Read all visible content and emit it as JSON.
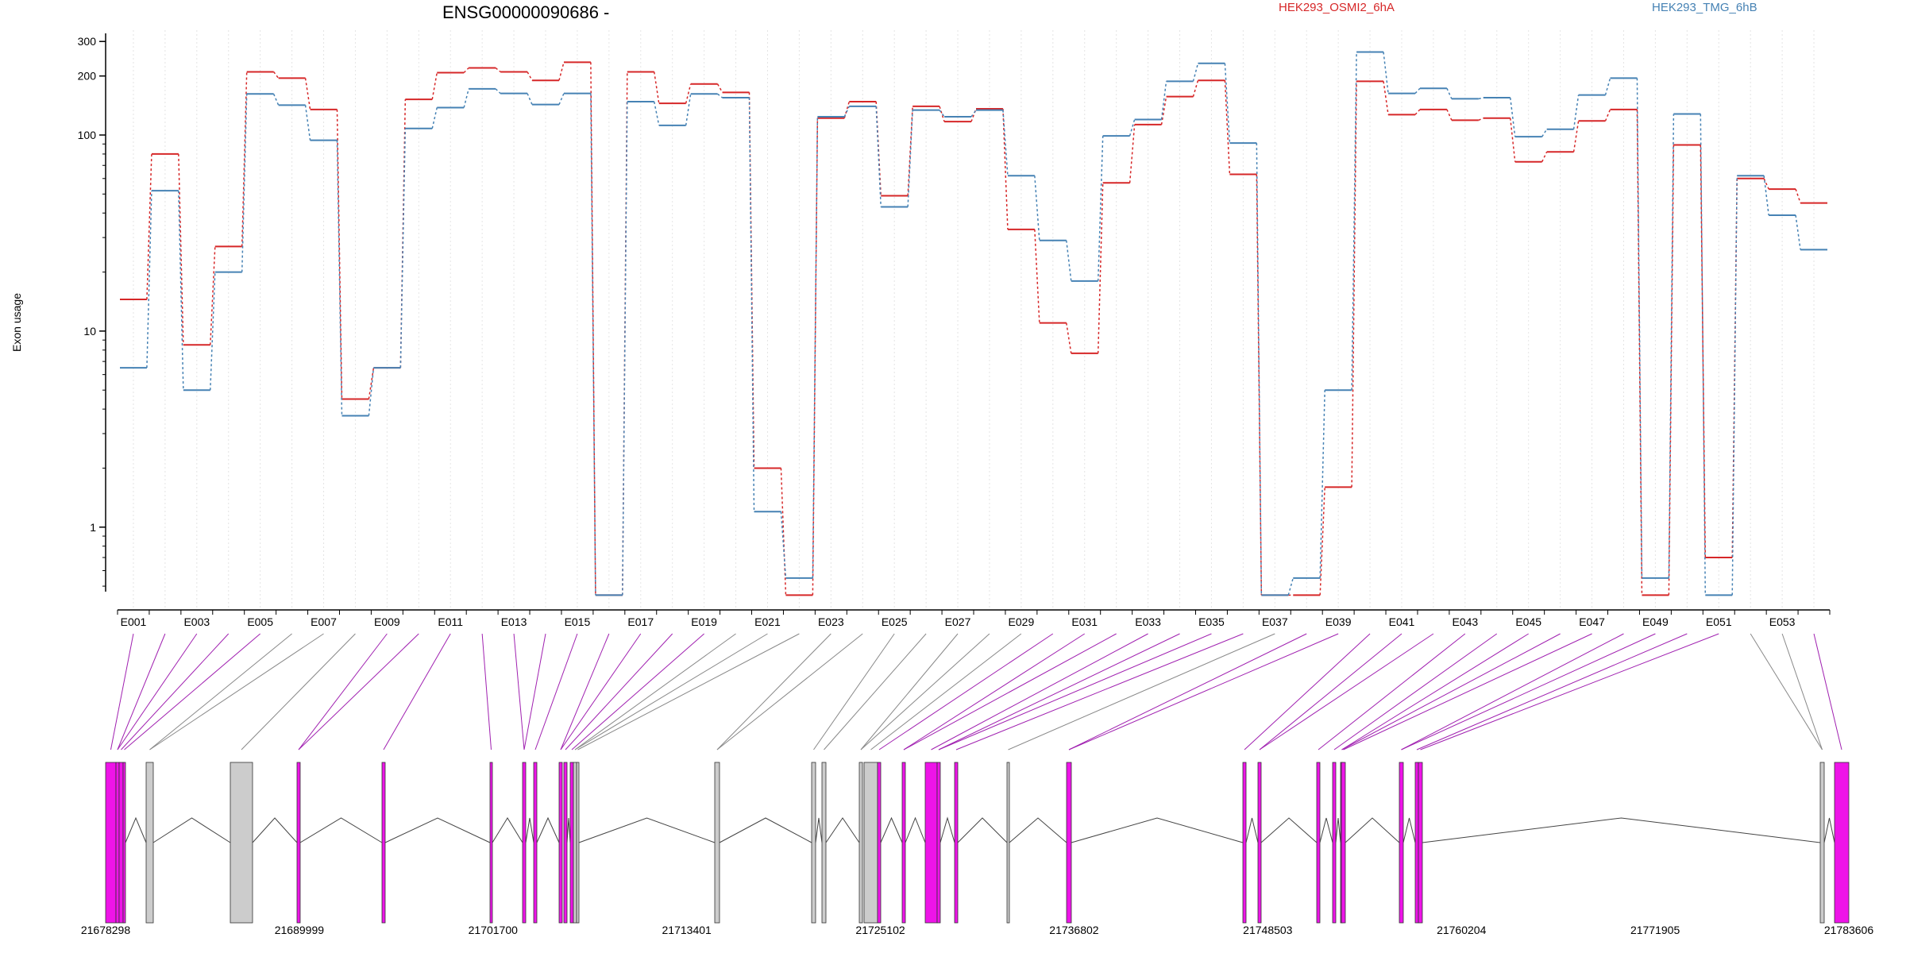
{
  "chart_data": {
    "type": "line",
    "title": "ENSG00000090686 -",
    "ylabel": "Exon usage",
    "y_scale": "log",
    "ylim": [
      0.4,
      330
    ],
    "y_ticks": [
      {
        "value": 1,
        "label": "1"
      },
      {
        "value": 10,
        "label": "10"
      },
      {
        "value": 100,
        "label": "100"
      },
      {
        "value": 200,
        "label": "200"
      },
      {
        "value": 300,
        "label": "300"
      }
    ],
    "categories": [
      "E001",
      "E002",
      "E003",
      "E004",
      "E005",
      "E006",
      "E007",
      "E008",
      "E009",
      "E010",
      "E011",
      "E012",
      "E013",
      "E014",
      "E015",
      "E016",
      "E017",
      "E018",
      "E019",
      "E020",
      "E021",
      "E022",
      "E023",
      "E024",
      "E025",
      "E026",
      "E027",
      "E028",
      "E029",
      "E030",
      "E031",
      "E032",
      "E033",
      "E034",
      "E035",
      "E036",
      "E037",
      "E038",
      "E039",
      "E040",
      "E041",
      "E042",
      "E043",
      "E044",
      "E045",
      "E046",
      "E047",
      "E048",
      "E049",
      "E050",
      "E051",
      "E052",
      "E053",
      "E054"
    ],
    "shown_category_labels": [
      "E001",
      "E003",
      "E005",
      "E007",
      "E009",
      "E011",
      "E013",
      "E015",
      "E017",
      "E019",
      "E021",
      "E023",
      "E025",
      "E027",
      "E029",
      "E031",
      "E033",
      "E035",
      "E037",
      "E039",
      "E041",
      "E043",
      "E045",
      "E047",
      "E049",
      "E051",
      "E053"
    ],
    "series": [
      {
        "name": "HEK293_OSMI2_6hA",
        "color": "#d62728",
        "values": [
          14.5,
          80,
          8.5,
          27,
          210,
          195,
          135,
          4.5,
          6.5,
          152,
          208,
          220,
          210,
          190,
          235,
          0.45,
          210,
          145,
          182,
          165,
          2.0,
          0.45,
          122,
          148,
          49,
          140,
          117,
          136,
          33,
          11,
          7.7,
          57,
          113,
          157,
          190,
          63,
          0.45,
          0.45,
          1.6,
          188,
          127,
          135,
          119,
          122,
          73,
          82,
          118,
          135,
          0.45,
          89,
          0.7,
          60,
          53,
          45
        ]
      },
      {
        "name": "HEK293_TMG_6hB",
        "color": "#4682b4",
        "values": [
          6.5,
          52,
          5.0,
          20,
          162,
          142,
          94,
          3.7,
          6.5,
          108,
          138,
          172,
          163,
          143,
          163,
          0.45,
          148,
          112,
          162,
          155,
          1.2,
          0.55,
          124,
          140,
          43,
          134,
          124,
          134,
          62,
          29,
          18,
          99,
          120,
          188,
          232,
          91,
          0.45,
          0.55,
          5.0,
          265,
          163,
          173,
          153,
          155,
          98,
          107,
          160,
          195,
          0.55,
          128,
          0.45,
          62,
          39,
          26
        ]
      }
    ],
    "gene_model": {
      "coordinate_labels": [
        "21678298",
        "21689999",
        "21701700",
        "21713401",
        "21725102",
        "21736802",
        "21748503",
        "21760204",
        "21771905",
        "21783606"
      ]
    }
  }
}
